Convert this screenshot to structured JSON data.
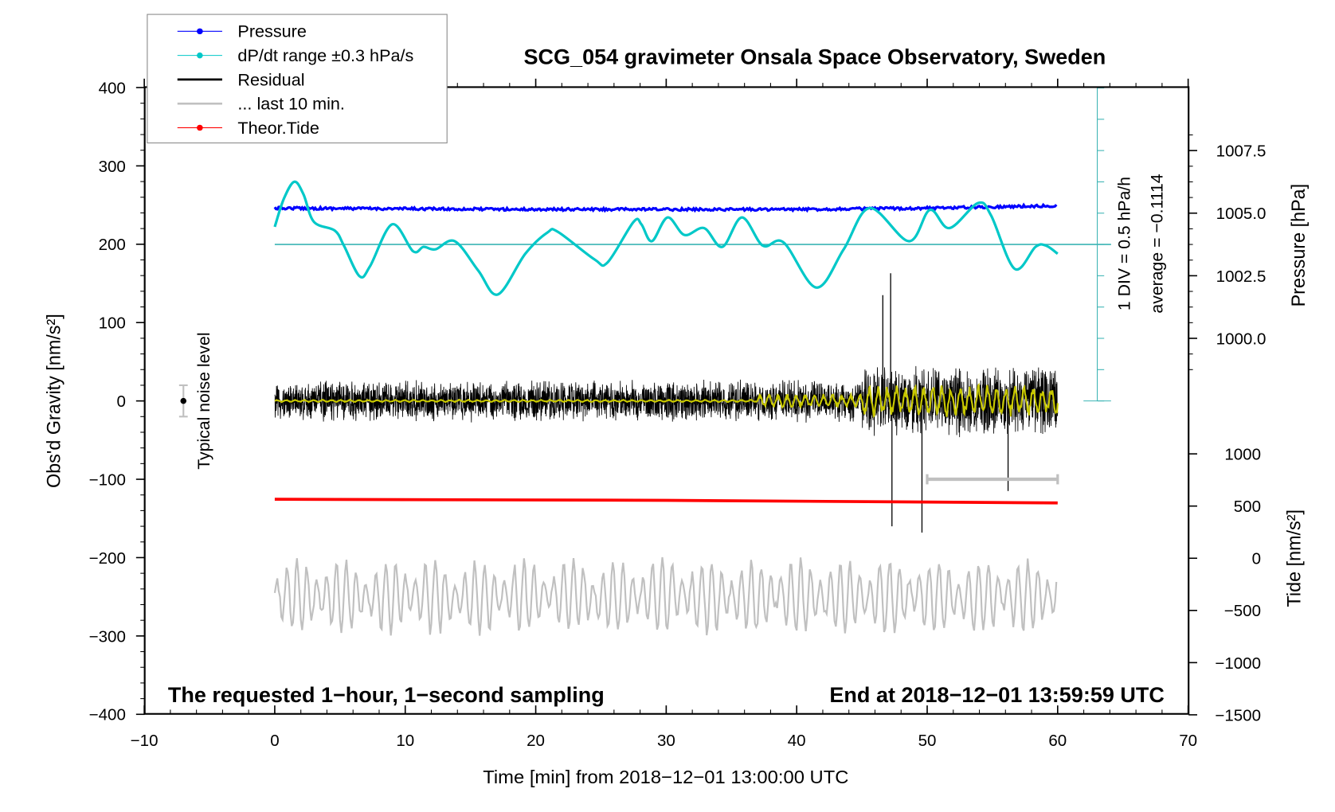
{
  "chart_data": {
    "type": "line",
    "title": "SCG_054 gravimeter Onsala Space Observatory, Sweden",
    "xlabel": "Time [min] from 2018−12−01 13:00:00 UTC",
    "ylabel_left": "Obs'd Gravity [nm/s²]",
    "ylabel_right_top": "Pressure [hPa]",
    "ylabel_right_bottom": "Tide [nm/s²]",
    "xlim": [
      -10,
      70
    ],
    "ylim_left": [
      -400,
      400
    ],
    "x_ticks": [
      "−10",
      "0",
      "10",
      "20",
      "30",
      "40",
      "50",
      "60",
      "70"
    ],
    "y_ticks_left": [
      "400",
      "300",
      "200",
      "100",
      "0",
      "−100",
      "−200",
      "−300",
      "−400"
    ],
    "pressure_ticks": [
      "1007.5",
      "1005.0",
      "1002.5",
      "1000.0"
    ],
    "tide_ticks": [
      "1000",
      "500",
      "0",
      "−500",
      "−1000",
      "−1500"
    ],
    "legend": {
      "placement": "top-left",
      "entries": [
        {
          "label": "Pressure",
          "color": "#0000ff"
        },
        {
          "label": "dP/dt range ±0.3 hPa/s",
          "color": "#00c8c8"
        },
        {
          "label": "Residual",
          "color": "#000000"
        },
        {
          "label": "... last 10 min.",
          "color": "#c0c0c0"
        },
        {
          "label": "Theor.Tide",
          "color": "#ff0000"
        }
      ]
    },
    "annotations": {
      "bottom_left": "The requested 1−hour, 1−second sampling",
      "bottom_right": "End at 2018−12−01 13:59:59 UTC",
      "noise_label": "Typical noise level",
      "div_label": "1 DIV = 0.5 hPa/h",
      "average_label": "average = −0.1114"
    },
    "noise_level": {
      "x": -7,
      "center": 0,
      "half_range": 20
    },
    "last10_bar": {
      "x": [
        50,
        60
      ],
      "y": -100
    },
    "pressure": {
      "x": [
        0,
        20,
        40,
        50,
        60
      ],
      "hPa": [
        1005.2,
        1005.15,
        1005.15,
        1005.2,
        1005.3
      ]
    },
    "theor_tide": {
      "x": [
        0,
        30,
        60
      ],
      "nm_s2": [
        565,
        555,
        530
      ]
    },
    "dpdt": {
      "average": -0.1114,
      "div": 0.5,
      "x": [
        0,
        0.7,
        1.5,
        2.2,
        3.0,
        4.6,
        5.3,
        6.5,
        7.3,
        9.0,
        10.6,
        11.4,
        12.3,
        13.8,
        15.6,
        17.1,
        19.2,
        20.9,
        21.7,
        24.5,
        25.5,
        27.5,
        28.1,
        28.9,
        30.1,
        31.4,
        32.9,
        34.3,
        35.8,
        37.4,
        39.0,
        41.5,
        43.6,
        45.6,
        48.6,
        50.2,
        51.7,
        53.9,
        54.9,
        56.7,
        58.3,
        59.1,
        60
      ],
      "hPa_per_h": [
        0.17,
        0.62,
        0.89,
        0.69,
        0.25,
        0.11,
        -0.13,
        -0.62,
        -0.46,
        0.21,
        -0.22,
        -0.15,
        -0.19,
        -0.06,
        -0.53,
        -0.91,
        -0.26,
        0.08,
        0.09,
        -0.35,
        -0.4,
        0.25,
        0.21,
        -0.06,
        0.32,
        0.04,
        0.15,
        -0.15,
        0.32,
        -0.13,
        -0.08,
        -0.8,
        -0.19,
        0.47,
        -0.06,
        0.44,
        0.15,
        0.55,
        0.35,
        -0.5,
        -0.15,
        -0.13,
        -0.26
      ]
    },
    "residual": {
      "amplitude_before_45min": 40,
      "amplitude_after_45min": 70,
      "spikes": [
        {
          "x": 46.6,
          "y": 135
        },
        {
          "x": 47.2,
          "y": 163
        },
        {
          "x": 47.3,
          "y": -160
        },
        {
          "x": 49.6,
          "y": -168
        },
        {
          "x": 56.2,
          "y": -115
        }
      ]
    },
    "last10_trace": {
      "center": -250,
      "amplitude": 45
    }
  }
}
